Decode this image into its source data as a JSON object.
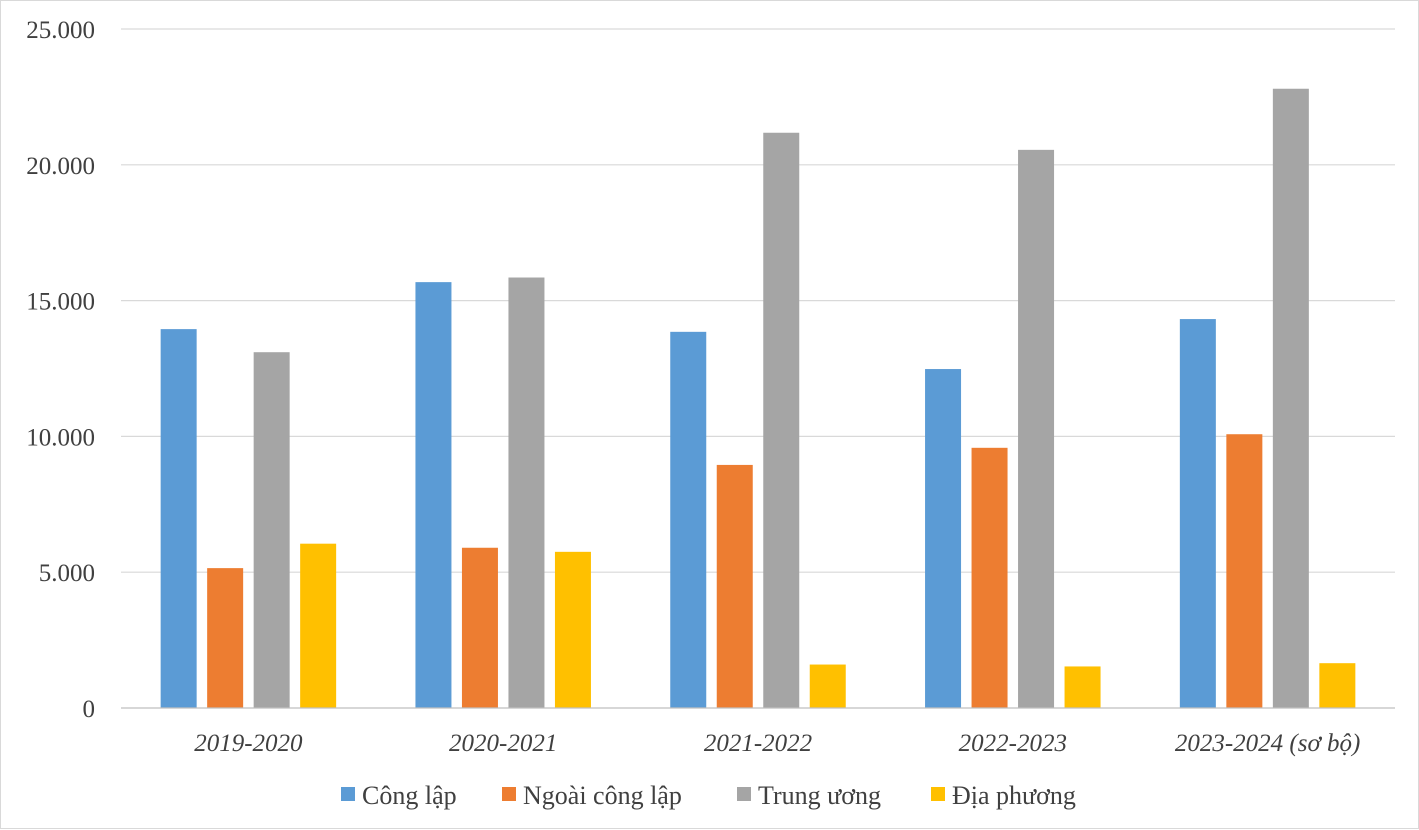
{
  "chart_data": {
    "type": "bar",
    "categories": [
      "2019-2020",
      "2020-2021",
      "2021-2022",
      "2022-2023",
      "2023-2024 (sơ bộ)"
    ],
    "series": [
      {
        "name": "Công lập",
        "color": "#5B9BD5",
        "values": [
          13950,
          15680,
          13850,
          12480,
          14320
        ]
      },
      {
        "name": "Ngoài công lập",
        "color": "#ED7D31",
        "values": [
          5150,
          5900,
          8950,
          9580,
          10080
        ]
      },
      {
        "name": "Trung ương",
        "color": "#A5A5A5",
        "values": [
          13100,
          15850,
          21180,
          20550,
          22800
        ]
      },
      {
        "name": "Địa phương",
        "color": "#FFC000",
        "values": [
          6050,
          5750,
          1600,
          1530,
          1650
        ]
      }
    ],
    "yticks": [
      "0",
      "5.000",
      "10.000",
      "15.000",
      "20.000",
      "25.000"
    ],
    "ylim": [
      0,
      25000
    ],
    "ystep": 5000,
    "grid": true,
    "legend_position": "bottom"
  }
}
